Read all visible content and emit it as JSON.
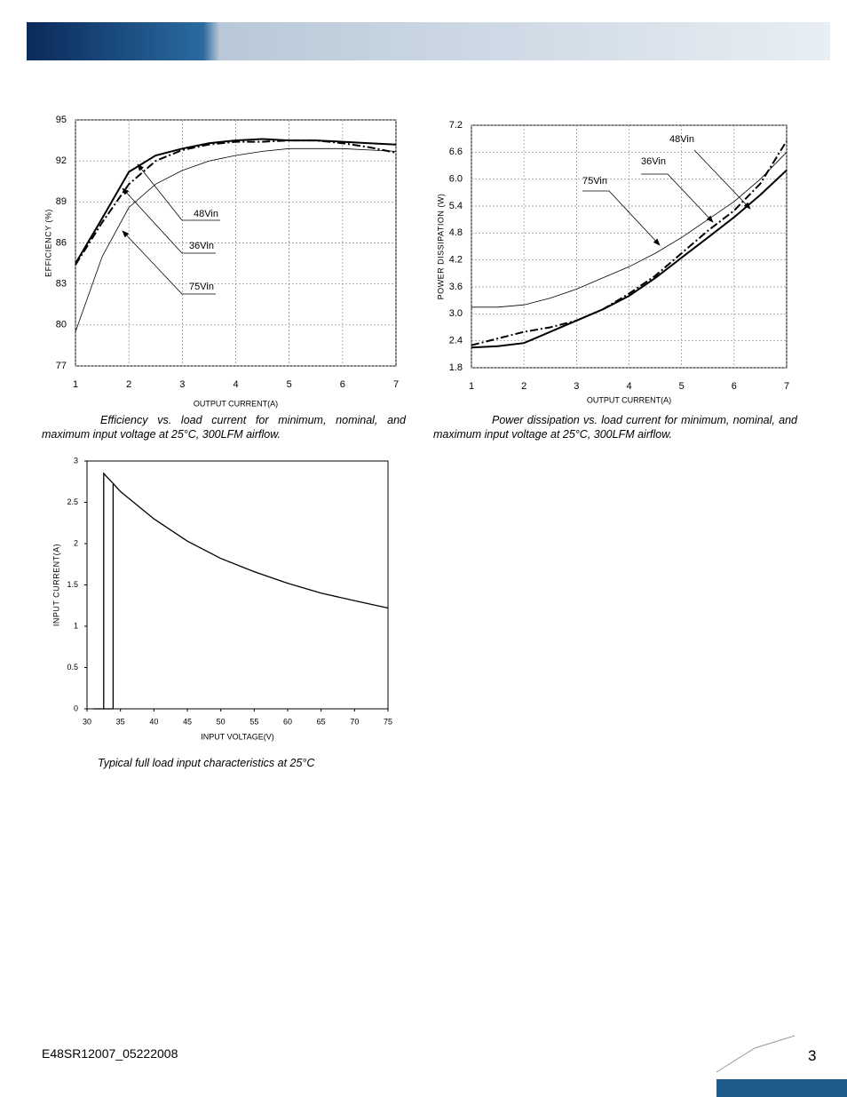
{
  "chart_data": [
    {
      "type": "line",
      "xlabel": "OUTPUT CURRENT(A)",
      "ylabel": "EFFICIENCY (%)",
      "x": [
        1,
        1.5,
        2,
        2.5,
        3,
        3.5,
        4,
        4.5,
        5,
        5.5,
        6,
        6.5,
        7
      ],
      "xlim": [
        1,
        7
      ],
      "xticks": [
        1,
        2,
        3,
        4,
        5,
        6,
        7
      ],
      "ylim": [
        77,
        95
      ],
      "yticks": [
        77,
        80,
        83,
        86,
        89,
        92,
        95
      ],
      "grid": true,
      "series": [
        {
          "name": "48Vin",
          "color": "#000000",
          "linestyle": "bold",
          "values": [
            84.5,
            87.8,
            91.2,
            92.4,
            92.9,
            93.3,
            93.5,
            93.6,
            93.5,
            93.5,
            93.4,
            93.3,
            93.2
          ]
        },
        {
          "name": "36Vin",
          "color": "#000000",
          "linestyle": "dashdot",
          "values": [
            84.4,
            87.5,
            90.3,
            92.0,
            92.8,
            93.2,
            93.4,
            93.4,
            93.5,
            93.5,
            93.3,
            93.0,
            92.6
          ]
        },
        {
          "name": "75Vin",
          "color": "#000000",
          "linestyle": "thin",
          "values": [
            79.5,
            85.0,
            88.6,
            90.3,
            91.3,
            92.0,
            92.4,
            92.7,
            92.9,
            92.9,
            92.9,
            92.8,
            92.7
          ]
        }
      ],
      "caption": "Efficiency vs. load current for minimum, nominal, and maximum input voltage at 25°C, 300LFM airflow."
    },
    {
      "type": "line",
      "xlabel": "OUTPUT CURRENT(A)",
      "ylabel": "POWER DISSIPATION (W)",
      "x": [
        1,
        1.5,
        2,
        2.5,
        3,
        3.5,
        4,
        4.5,
        5,
        5.5,
        6,
        6.5,
        7
      ],
      "xlim": [
        1,
        7
      ],
      "xticks": [
        1,
        2,
        3,
        4,
        5,
        6,
        7
      ],
      "ylim": [
        1.8,
        7.2
      ],
      "yticks": [
        1.8,
        2.4,
        {
          "value": 3,
          "label": "3.0"
        },
        3.6,
        4.2,
        4.8,
        5.4,
        {
          "value": 6,
          "label": "6.0"
        },
        6.6,
        7.2
      ],
      "grid": true,
      "series": [
        {
          "name": "48Vin",
          "color": "#000000",
          "linestyle": "bold",
          "values": [
            2.25,
            2.28,
            2.35,
            2.6,
            2.85,
            3.1,
            3.4,
            3.8,
            4.25,
            4.7,
            5.15,
            5.65,
            6.2
          ]
        },
        {
          "name": "36Vin",
          "color": "#000000",
          "linestyle": "dashdot",
          "values": [
            2.3,
            2.45,
            2.6,
            2.7,
            2.85,
            3.1,
            3.45,
            3.85,
            4.35,
            4.85,
            5.3,
            5.9,
            6.85
          ]
        },
        {
          "name": "75Vin",
          "color": "#000000",
          "linestyle": "thin",
          "values": [
            3.15,
            3.15,
            3.2,
            3.35,
            3.55,
            3.8,
            4.05,
            4.35,
            4.7,
            5.1,
            5.5,
            6.0,
            6.6
          ]
        }
      ],
      "caption": "Power dissipation vs. load current for minimum, nominal, and maximum input voltage at 25°C, 300LFM airflow."
    },
    {
      "type": "line",
      "xlabel": "INPUT VOLTAGE(V)",
      "ylabel": "INPUT CURRENT(A)",
      "xlim": [
        30,
        75
      ],
      "xticks": [
        30,
        35,
        40,
        45,
        50,
        55,
        60,
        65,
        70,
        75
      ],
      "ylim": [
        0,
        3
      ],
      "yticks": [
        0,
        0.5,
        1,
        1.5,
        2,
        2.5,
        3
      ],
      "grid": false,
      "series": [
        {
          "color": "#000000",
          "linestyle": "solid",
          "x": [
            31,
            32.5,
            32.5,
            34,
            35,
            40,
            45,
            50,
            55,
            60,
            65,
            70,
            75
          ],
          "values": [
            0,
            0,
            2.85,
            2.72,
            2.63,
            2.3,
            2.03,
            1.82,
            1.66,
            1.52,
            1.4,
            1.31,
            1.22
          ]
        },
        {
          "color": "#000000",
          "linestyle": "solid",
          "x": [
            32.5,
            33.9,
            33.9
          ],
          "values": [
            0,
            0,
            2.72
          ]
        }
      ],
      "caption": "Typical full load input characteristics at 25°C"
    }
  ],
  "footer": {
    "document_id": "E48SR12007_05222008",
    "page_number": "3"
  }
}
